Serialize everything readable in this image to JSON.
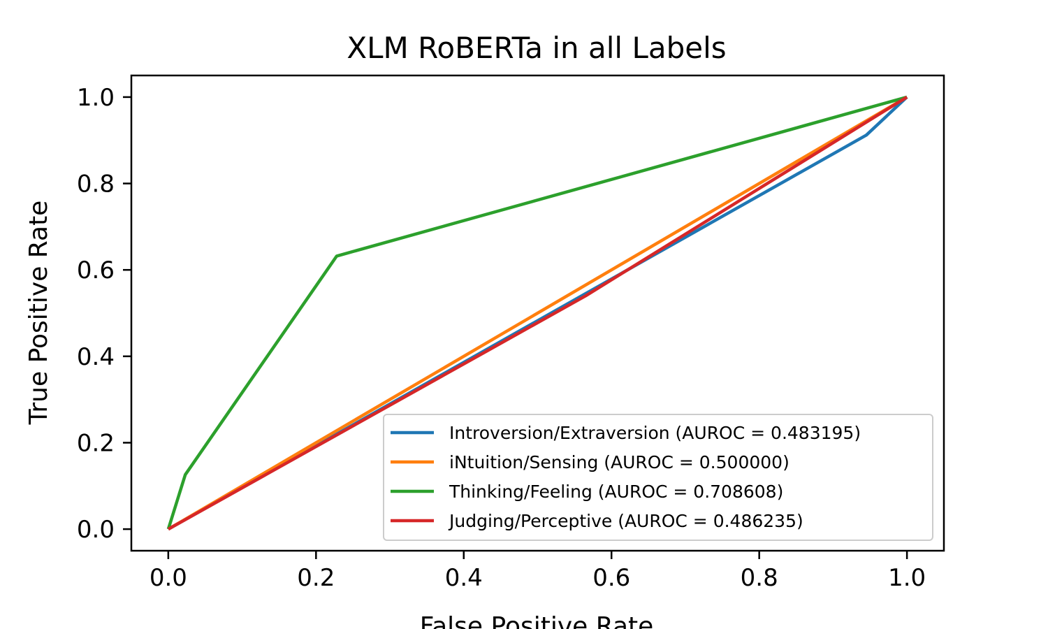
{
  "chart_data": {
    "type": "line",
    "title": "XLM RoBERTa in all Labels",
    "xlabel": "False Positive Rate",
    "ylabel": "True Positive Rate",
    "xlim": [
      -0.05,
      1.05
    ],
    "ylim": [
      -0.05,
      1.05
    ],
    "xticks": [
      "0.0",
      "0.2",
      "0.4",
      "0.6",
      "0.8",
      "1.0"
    ],
    "yticks": [
      "0.0",
      "0.2",
      "0.4",
      "0.6",
      "0.8",
      "1.0"
    ],
    "grid": false,
    "legend_position": "lower-right",
    "series": [
      {
        "name": "Introversion/Extraversion (AUROC = 0.483195)",
        "color": "#1f77b4",
        "x": [
          0.0,
          0.945,
          1.0
        ],
        "y": [
          0.0,
          0.912,
          1.0
        ]
      },
      {
        "name": "iNtuition/Sensing (AUROC = 0.500000)",
        "color": "#ff7f0e",
        "x": [
          0.0,
          1.0
        ],
        "y": [
          0.0,
          1.0
        ]
      },
      {
        "name": "Thinking/Feeling (AUROC = 0.708608)",
        "color": "#2ca02c",
        "x": [
          0.0,
          0.023,
          0.228,
          1.0
        ],
        "y": [
          0.0,
          0.126,
          0.632,
          1.0
        ]
      },
      {
        "name": "Judging/Perceptive (AUROC = 0.486235)",
        "color": "#d62728",
        "x": [
          0.0,
          0.565,
          1.0
        ],
        "y": [
          0.0,
          0.54,
          1.0
        ]
      }
    ]
  }
}
